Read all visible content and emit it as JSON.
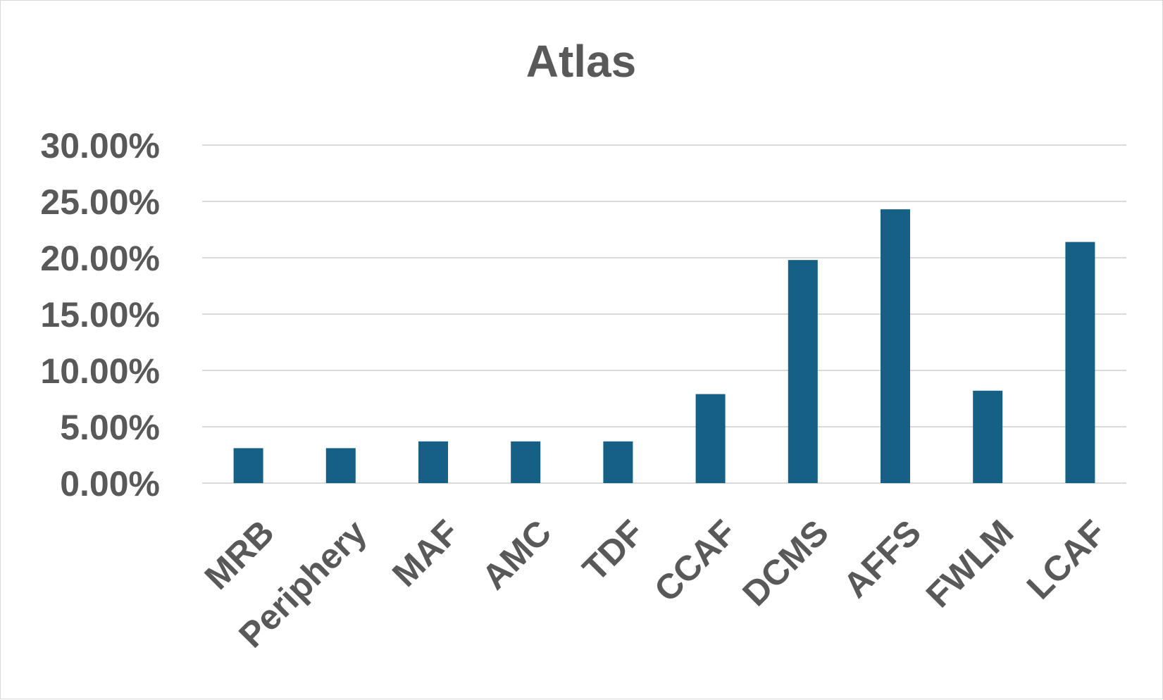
{
  "chart_data": {
    "type": "bar",
    "title": "Atlas",
    "xlabel": "",
    "ylabel": "",
    "categories": [
      "MRB",
      "Periphery",
      "MAF",
      "AMC",
      "TDF",
      "CCAF",
      "DCMS",
      "AFFS",
      "FWLM",
      "LCAF"
    ],
    "values": [
      0.031,
      0.031,
      0.037,
      0.037,
      0.037,
      0.079,
      0.198,
      0.243,
      0.082,
      0.214
    ],
    "ylim": [
      0,
      0.3
    ],
    "yticks": [
      0,
      0.05,
      0.1,
      0.15,
      0.2,
      0.25,
      0.3
    ],
    "ytick_labels": [
      "0.00%",
      "5.00%",
      "10.00%",
      "15.00%",
      "20.00%",
      "25.00%",
      "30.00%"
    ],
    "grid": true,
    "legend": "none",
    "colors": {
      "bar": "#176085",
      "text": "#595959",
      "grid": "#d9d9d9"
    }
  }
}
